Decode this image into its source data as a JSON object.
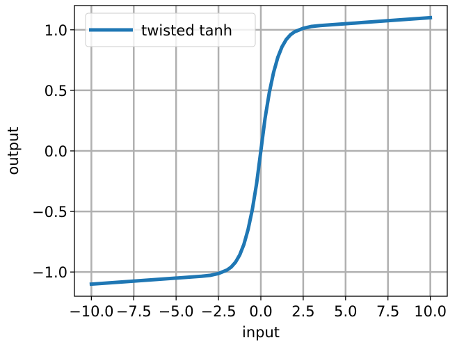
{
  "chart_data": {
    "type": "line",
    "title": "",
    "xlabel": "input",
    "ylabel": "output",
    "xlim": [
      -11,
      11
    ],
    "ylim": [
      -1.2,
      1.2
    ],
    "grid": true,
    "legend_position": "top-left",
    "x_ticks": [
      -10.0,
      -7.5,
      -5.0,
      -2.5,
      0.0,
      2.5,
      5.0,
      7.5,
      10.0
    ],
    "x_tick_labels": [
      "−10.0",
      "−7.5",
      "−5.0",
      "−2.5",
      "0.0",
      "2.5",
      "5.0",
      "7.5",
      "10.0"
    ],
    "y_ticks": [
      -1.0,
      -0.5,
      0.0,
      0.5,
      1.0
    ],
    "y_tick_labels": [
      "−1.0",
      "−0.5",
      "0.0",
      "0.5",
      "1.0"
    ],
    "series": [
      {
        "name": "twisted tanh",
        "color": "#1f77b4",
        "x": [
          -10,
          -9,
          -8,
          -7,
          -6,
          -5,
          -4,
          -3.5,
          -3,
          -2.5,
          -2,
          -1.75,
          -1.5,
          -1.25,
          -1,
          -0.75,
          -0.5,
          -0.25,
          0,
          0.25,
          0.5,
          0.75,
          1,
          1.25,
          1.5,
          1.75,
          2,
          2.5,
          3,
          3.5,
          4,
          5,
          6,
          7,
          8,
          9,
          10
        ],
        "y": [
          -1.1,
          -1.09,
          -1.08,
          -1.07,
          -1.06,
          -1.05,
          -1.04,
          -1.035,
          -1.028,
          -1.012,
          -0.984,
          -0.959,
          -0.92,
          -0.86,
          -0.772,
          -0.647,
          -0.482,
          -0.27,
          0,
          0.27,
          0.482,
          0.647,
          0.772,
          0.86,
          0.92,
          0.959,
          0.984,
          1.012,
          1.028,
          1.035,
          1.04,
          1.05,
          1.06,
          1.07,
          1.08,
          1.09,
          1.1
        ]
      }
    ]
  }
}
